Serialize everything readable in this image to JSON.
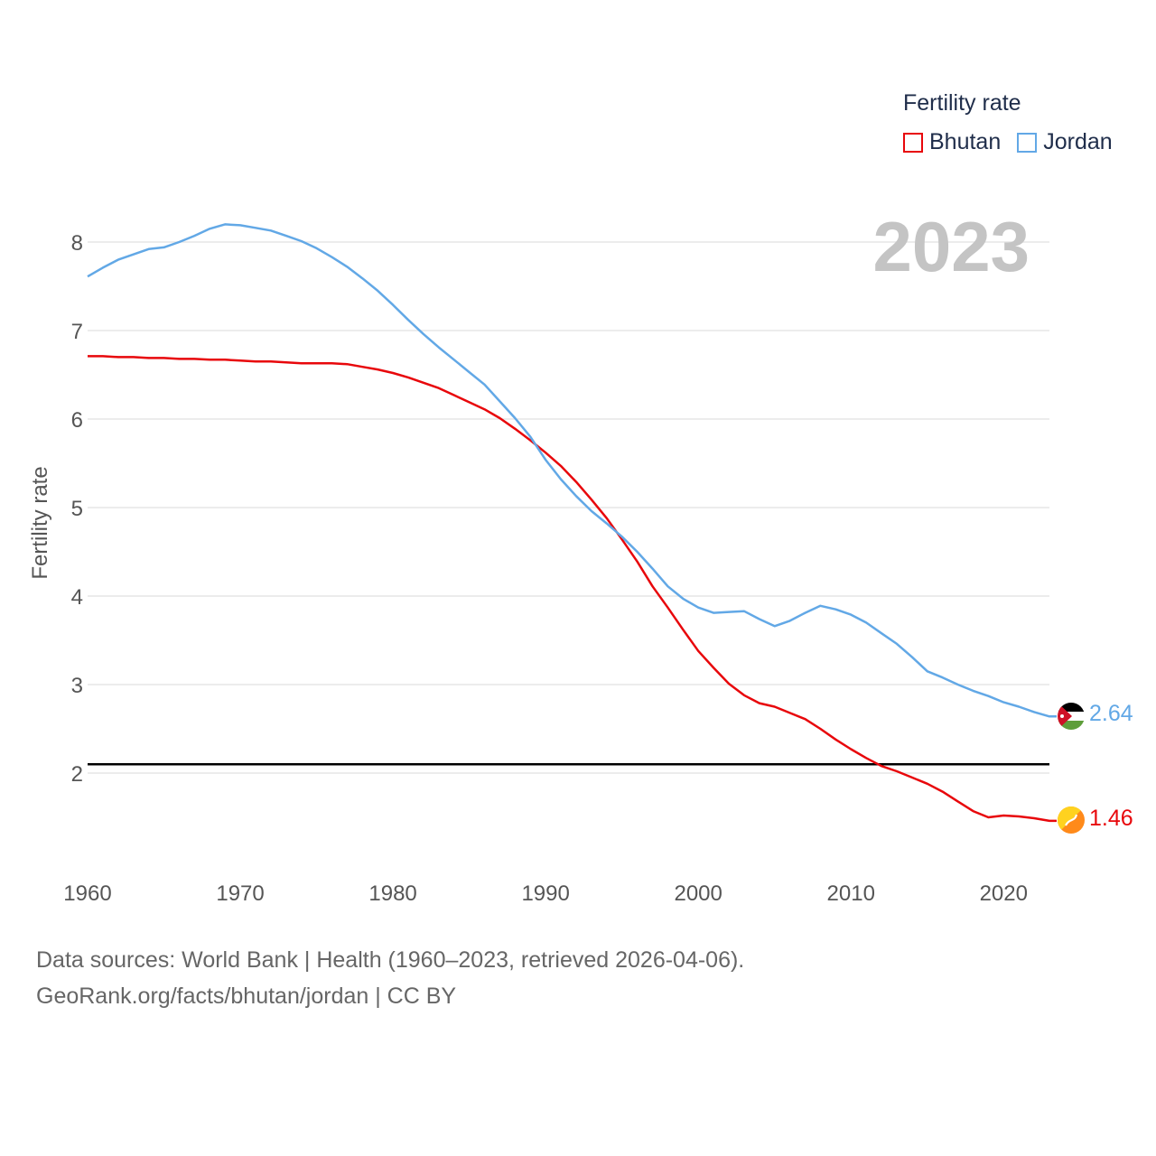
{
  "legend": {
    "title": "Fertility rate",
    "items": [
      {
        "name": "Bhutan",
        "color": "#e8070b"
      },
      {
        "name": "Jordan",
        "color": "#62a8e6"
      }
    ]
  },
  "year_label": "2023",
  "footer": {
    "line1": "Data sources: World Bank | Health (1960–2023, retrieved 2026-04-06).",
    "line2": "GeoRank.org/facts/bhutan/jordan | CC BY"
  },
  "chart_data": {
    "type": "line",
    "ylabel": "Fertility rate",
    "xlabel": "",
    "xlim": [
      1960,
      2023
    ],
    "ylim": [
      1,
      8.5
    ],
    "xticks": [
      1960,
      1970,
      1980,
      1990,
      2000,
      2010,
      2020
    ],
    "yticks": [
      2,
      3,
      4,
      5,
      6,
      7,
      8
    ],
    "reference_line": {
      "value": 2.1,
      "color": "#000000"
    },
    "series": [
      {
        "name": "Bhutan",
        "color": "#e8070b",
        "end_label": "1.46",
        "flag_icon": "bhutan-flag-icon",
        "x": [
          1960,
          1961,
          1962,
          1963,
          1964,
          1965,
          1966,
          1967,
          1968,
          1969,
          1970,
          1971,
          1972,
          1973,
          1974,
          1975,
          1976,
          1977,
          1978,
          1979,
          1980,
          1981,
          1982,
          1983,
          1984,
          1985,
          1986,
          1987,
          1988,
          1989,
          1990,
          1991,
          1992,
          1993,
          1994,
          1995,
          1996,
          1997,
          1998,
          1999,
          2000,
          2001,
          2002,
          2003,
          2004,
          2005,
          2006,
          2007,
          2008,
          2009,
          2010,
          2011,
          2012,
          2013,
          2014,
          2015,
          2016,
          2017,
          2018,
          2019,
          2020,
          2021,
          2022,
          2023
        ],
        "values": [
          6.71,
          6.71,
          6.7,
          6.7,
          6.69,
          6.69,
          6.68,
          6.68,
          6.67,
          6.67,
          6.66,
          6.65,
          6.65,
          6.64,
          6.63,
          6.63,
          6.63,
          6.62,
          6.59,
          6.56,
          6.52,
          6.47,
          6.41,
          6.35,
          6.27,
          6.19,
          6.11,
          6.01,
          5.89,
          5.76,
          5.62,
          5.47,
          5.29,
          5.09,
          4.88,
          4.64,
          4.39,
          4.11,
          3.87,
          3.62,
          3.38,
          3.19,
          3.01,
          2.88,
          2.79,
          2.75,
          2.68,
          2.61,
          2.5,
          2.38,
          2.27,
          2.17,
          2.08,
          2.02,
          1.95,
          1.88,
          1.79,
          1.68,
          1.57,
          1.5,
          1.52,
          1.51,
          1.49,
          1.46
        ]
      },
      {
        "name": "Jordan",
        "color": "#62a8e6",
        "end_label": "2.64",
        "flag_icon": "jordan-flag-icon",
        "x": [
          1960,
          1961,
          1962,
          1963,
          1964,
          1965,
          1966,
          1967,
          1968,
          1969,
          1970,
          1971,
          1972,
          1973,
          1974,
          1975,
          1976,
          1977,
          1978,
          1979,
          1980,
          1981,
          1982,
          1983,
          1984,
          1985,
          1986,
          1987,
          1988,
          1989,
          1990,
          1991,
          1992,
          1993,
          1994,
          1995,
          1996,
          1997,
          1998,
          1999,
          2000,
          2001,
          2002,
          2003,
          2004,
          2005,
          2006,
          2007,
          2008,
          2009,
          2010,
          2011,
          2012,
          2013,
          2014,
          2015,
          2016,
          2017,
          2018,
          2019,
          2020,
          2021,
          2022,
          2023
        ],
        "values": [
          7.61,
          7.71,
          7.8,
          7.86,
          7.92,
          7.94,
          8.0,
          8.07,
          8.15,
          8.2,
          8.19,
          8.16,
          8.13,
          8.07,
          8.01,
          7.93,
          7.83,
          7.72,
          7.59,
          7.45,
          7.29,
          7.12,
          6.96,
          6.81,
          6.67,
          6.53,
          6.39,
          6.2,
          6.01,
          5.8,
          5.54,
          5.32,
          5.13,
          4.96,
          4.82,
          4.67,
          4.5,
          4.31,
          4.11,
          3.97,
          3.87,
          3.81,
          3.82,
          3.83,
          3.74,
          3.66,
          3.72,
          3.81,
          3.89,
          3.85,
          3.79,
          3.7,
          3.58,
          3.46,
          3.31,
          3.15,
          3.08,
          3.0,
          2.93,
          2.87,
          2.8,
          2.75,
          2.69,
          2.64
        ]
      }
    ]
  }
}
